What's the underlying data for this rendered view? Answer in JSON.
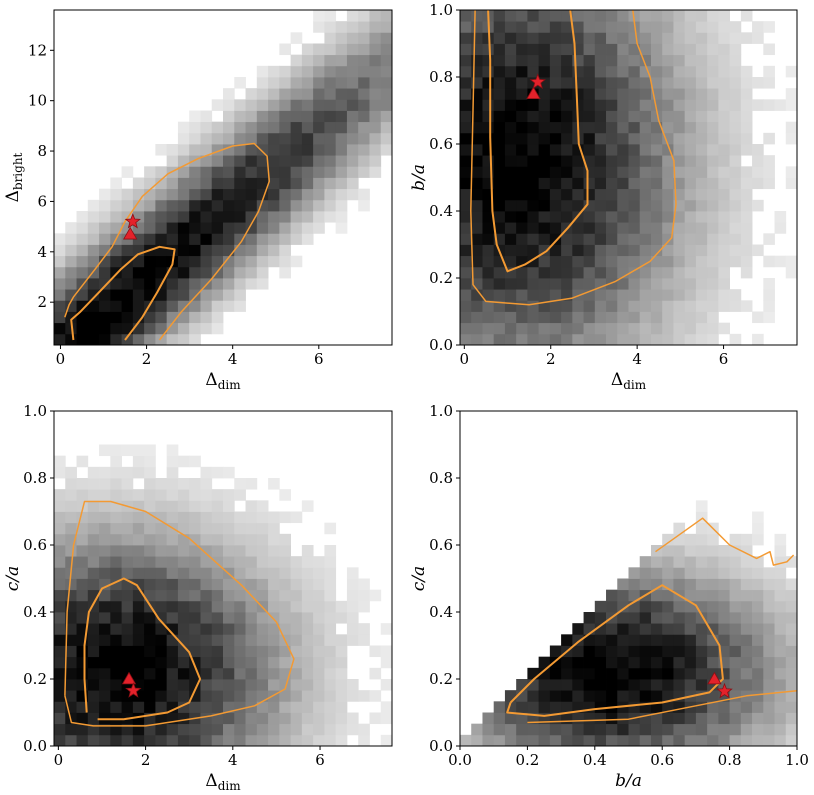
{
  "chart_data": [
    {
      "type": "heatmap",
      "x": {
        "label": "Δ",
        "sub": "dim",
        "range": [
          -0.15,
          7.7
        ],
        "ticks": [
          0,
          2,
          4,
          6
        ],
        "tick_labels": [
          "0",
          "2",
          "4",
          "6"
        ]
      },
      "y": {
        "label": "Δ",
        "sub": "bright",
        "range": [
          0.3,
          13.6
        ],
        "ticks": [
          2,
          4,
          6,
          8,
          10,
          12
        ],
        "tick_labels": [
          "2",
          "4",
          "6",
          "8",
          "10",
          "12"
        ]
      },
      "density": {
        "center": [
          1.0,
          1.5
        ],
        "dir": [
          0.55,
          0.835
        ],
        "sigma_along": 9.0,
        "sigma_perp": 1.05,
        "clip": "none"
      },
      "contours": [
        [
          [
            0.3,
            0.5
          ],
          [
            0.25,
            1.3
          ],
          [
            0.45,
            1.6
          ],
          [
            0.9,
            2.4
          ],
          [
            1.4,
            3.3
          ],
          [
            1.8,
            3.9
          ],
          [
            2.3,
            4.2
          ],
          [
            2.65,
            4.1
          ],
          [
            2.6,
            3.5
          ],
          [
            2.25,
            2.4
          ],
          [
            1.9,
            1.4
          ],
          [
            1.5,
            0.5
          ]
        ],
        [
          [
            0.1,
            1.4
          ],
          [
            0.2,
            1.9
          ],
          [
            0.3,
            2.2
          ],
          [
            0.8,
            3.3
          ],
          [
            1.2,
            4.2
          ],
          [
            1.5,
            5.2
          ],
          [
            1.9,
            6.2
          ],
          [
            2.5,
            7.1
          ],
          [
            3.2,
            7.7
          ],
          [
            4.0,
            8.2
          ],
          [
            4.5,
            8.3
          ],
          [
            4.8,
            7.8
          ],
          [
            4.85,
            6.8
          ],
          [
            4.6,
            5.6
          ],
          [
            4.2,
            4.4
          ],
          [
            3.5,
            2.9
          ],
          [
            2.8,
            1.6
          ],
          [
            2.3,
            0.5
          ]
        ]
      ],
      "markers": [
        {
          "kind": "triangle",
          "x": 1.62,
          "y": 4.7
        },
        {
          "kind": "star",
          "x": 1.68,
          "y": 5.2
        }
      ]
    },
    {
      "type": "heatmap",
      "x": {
        "label": "Δ",
        "sub": "dim",
        "range": [
          -0.1,
          7.7
        ],
        "ticks": [
          0,
          2,
          4,
          6
        ],
        "tick_labels": [
          "0",
          "2",
          "4",
          "6"
        ]
      },
      "y": {
        "label": "b/a",
        "range": [
          0,
          1
        ],
        "ticks": [
          0.0,
          0.2,
          0.4,
          0.6,
          0.8,
          1.0
        ],
        "tick_labels": [
          "0.0",
          "0.2",
          "0.4",
          "0.6",
          "0.8",
          "1.0"
        ]
      },
      "density": {
        "center": [
          1.2,
          0.55
        ],
        "dir": [
          1,
          0
        ],
        "sigma_along": 2.5,
        "sigma_perp": 0.42,
        "clip": "none"
      },
      "contours": [
        [
          [
            0.55,
            1.0
          ],
          [
            0.6,
            0.85
          ],
          [
            0.6,
            0.62
          ],
          [
            0.65,
            0.4
          ],
          [
            0.75,
            0.3
          ],
          [
            1.0,
            0.22
          ],
          [
            1.4,
            0.24
          ],
          [
            1.9,
            0.28
          ],
          [
            2.4,
            0.35
          ],
          [
            2.85,
            0.42
          ],
          [
            2.85,
            0.52
          ],
          [
            2.65,
            0.6
          ],
          [
            2.6,
            0.75
          ],
          [
            2.55,
            0.9
          ],
          [
            2.45,
            1.0
          ]
        ],
        [
          [
            0.25,
            1.0
          ],
          [
            0.2,
            0.7
          ],
          [
            0.15,
            0.4
          ],
          [
            0.2,
            0.18
          ],
          [
            0.5,
            0.13
          ],
          [
            1.5,
            0.12
          ],
          [
            2.5,
            0.14
          ],
          [
            3.5,
            0.19
          ],
          [
            4.3,
            0.25
          ],
          [
            4.8,
            0.32
          ],
          [
            4.9,
            0.42
          ],
          [
            4.85,
            0.55
          ],
          [
            4.5,
            0.67
          ],
          [
            4.3,
            0.8
          ],
          [
            4.0,
            0.9
          ],
          [
            3.9,
            1.0
          ]
        ]
      ],
      "markers": [
        {
          "kind": "triangle",
          "x": 1.6,
          "y": 0.75
        },
        {
          "kind": "star",
          "x": 1.7,
          "y": 0.785
        }
      ]
    },
    {
      "type": "heatmap",
      "x": {
        "label": "Δ",
        "sub": "dim",
        "range": [
          -0.1,
          7.65
        ],
        "ticks": [
          0,
          2,
          4,
          6
        ],
        "tick_labels": [
          "0",
          "2",
          "4",
          "6"
        ]
      },
      "y": {
        "label": "c/a",
        "range": [
          0,
          1
        ],
        "ticks": [
          0.0,
          0.2,
          0.4,
          0.6,
          0.8,
          1.0
        ],
        "tick_labels": [
          "0.0",
          "0.2",
          "0.4",
          "0.6",
          "0.8",
          "1.0"
        ]
      },
      "density": {
        "center": [
          1.4,
          0.22
        ],
        "dir": [
          1,
          0
        ],
        "sigma_along": 2.4,
        "sigma_perp": 0.26,
        "clip": "none"
      },
      "contours": [
        [
          [
            0.65,
            0.1
          ],
          [
            0.6,
            0.2
          ],
          [
            0.6,
            0.3
          ],
          [
            0.7,
            0.4
          ],
          [
            1.0,
            0.47
          ],
          [
            1.5,
            0.5
          ],
          [
            1.8,
            0.48
          ],
          [
            2.3,
            0.38
          ],
          [
            3.0,
            0.28
          ],
          [
            3.25,
            0.2
          ],
          [
            3.0,
            0.13
          ],
          [
            2.5,
            0.1
          ],
          [
            1.5,
            0.08
          ],
          [
            0.9,
            0.08
          ]
        ],
        [
          [
            0.15,
            0.15
          ],
          [
            0.2,
            0.4
          ],
          [
            0.35,
            0.6
          ],
          [
            0.6,
            0.73
          ],
          [
            1.2,
            0.73
          ],
          [
            2.0,
            0.7
          ],
          [
            3.0,
            0.62
          ],
          [
            3.6,
            0.55
          ],
          [
            4.2,
            0.48
          ],
          [
            5.0,
            0.37
          ],
          [
            5.4,
            0.26
          ],
          [
            5.2,
            0.17
          ],
          [
            4.5,
            0.12
          ],
          [
            3.5,
            0.09
          ],
          [
            2.0,
            0.06
          ],
          [
            0.8,
            0.06
          ],
          [
            0.3,
            0.07
          ],
          [
            0.15,
            0.15
          ]
        ]
      ],
      "markers": [
        {
          "kind": "triangle",
          "x": 1.62,
          "y": 0.2
        },
        {
          "kind": "star",
          "x": 1.72,
          "y": 0.165
        }
      ]
    },
    {
      "type": "heatmap",
      "x": {
        "label": "b/a",
        "range": [
          0,
          1
        ],
        "ticks": [
          0.0,
          0.2,
          0.4,
          0.6,
          0.8,
          1.0
        ],
        "tick_labels": [
          "0.0",
          "0.2",
          "0.4",
          "0.6",
          "0.8",
          "1.0"
        ]
      },
      "y": {
        "label": "c/a",
        "range": [
          0,
          1
        ],
        "ticks": [
          0.0,
          0.2,
          0.4,
          0.6,
          0.8,
          1.0
        ],
        "tick_labels": [
          "0.0",
          "0.2",
          "0.4",
          "0.6",
          "0.8",
          "1.0"
        ]
      },
      "density": {
        "center": [
          0.45,
          0.22
        ],
        "dir": [
          1,
          0
        ],
        "sigma_along": 0.32,
        "sigma_perp": 0.2,
        "clip": "triangle"
      },
      "contours": [
        [
          [
            0.15,
            0.13
          ],
          [
            0.22,
            0.2
          ],
          [
            0.35,
            0.31
          ],
          [
            0.5,
            0.42
          ],
          [
            0.6,
            0.48
          ],
          [
            0.7,
            0.42
          ],
          [
            0.77,
            0.3
          ],
          [
            0.78,
            0.2
          ],
          [
            0.74,
            0.16
          ],
          [
            0.6,
            0.13
          ],
          [
            0.4,
            0.11
          ],
          [
            0.25,
            0.09
          ],
          [
            0.14,
            0.1
          ],
          [
            0.15,
            0.13
          ]
        ],
        [
          [
            0.58,
            0.58
          ],
          [
            0.72,
            0.68
          ],
          [
            0.8,
            0.6
          ],
          [
            0.88,
            0.56
          ],
          [
            0.92,
            0.58
          ],
          [
            0.93,
            0.54
          ],
          [
            0.97,
            0.55
          ],
          [
            0.99,
            0.57
          ]
        ],
        [
          [
            0.2,
            0.07
          ],
          [
            0.5,
            0.08
          ],
          [
            0.7,
            0.12
          ],
          [
            0.85,
            0.15
          ],
          [
            1.0,
            0.165
          ]
        ]
      ],
      "markers": [
        {
          "kind": "triangle",
          "x": 0.755,
          "y": 0.2
        },
        {
          "kind": "star",
          "x": 0.785,
          "y": 0.163
        }
      ]
    }
  ]
}
